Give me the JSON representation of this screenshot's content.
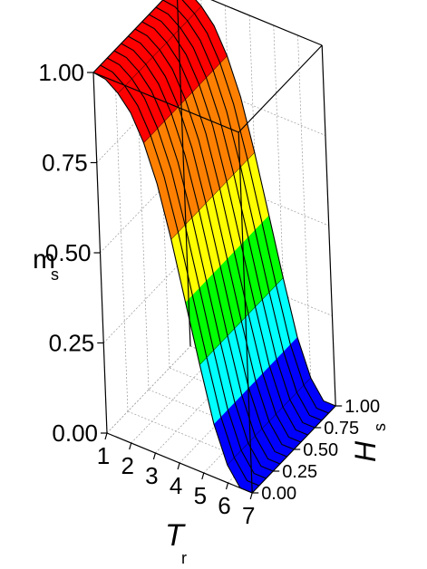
{
  "chart_data": {
    "type": "surface3d",
    "title": "",
    "zlabel": {
      "main": "m",
      "sub": "s"
    },
    "xlabel": {
      "main": "T",
      "sub": "r"
    },
    "ylabel": {
      "main": "H",
      "sub": "s"
    },
    "xlim": [
      1,
      7
    ],
    "ylim": [
      0,
      1
    ],
    "zlim": [
      0,
      1
    ],
    "x_ticks": [
      "1",
      "2",
      "3",
      "4",
      "5",
      "6",
      "7"
    ],
    "y_ticks": [
      "0.00",
      "0.25",
      "0.50",
      "0.75",
      "1.00"
    ],
    "z_ticks": [
      "0.00",
      "0.25",
      "0.50",
      "0.75",
      "1.00"
    ],
    "grid": true,
    "x": [
      1.0,
      1.5,
      2.0,
      2.5,
      3.0,
      3.5,
      4.0,
      4.5,
      5.0,
      5.5,
      6.0,
      6.5,
      7.0
    ],
    "y": [
      0.0,
      0.0833,
      0.1667,
      0.25,
      0.3333,
      0.4167,
      0.5,
      0.5833,
      0.6667,
      0.75,
      0.8333,
      0.9167,
      1.0
    ],
    "z_profile_along_x": [
      1.0,
      0.995,
      0.97,
      0.93,
      0.86,
      0.76,
      0.62,
      0.46,
      0.3,
      0.15,
      0.05,
      0.0,
      0.0
    ],
    "z_rule": "same profile for every y value",
    "colormap": [
      "#0000ff",
      "#00ffff",
      "#00ff00",
      "#ffff00",
      "#ff8000",
      "#ff0000"
    ],
    "colorbands": 6
  }
}
